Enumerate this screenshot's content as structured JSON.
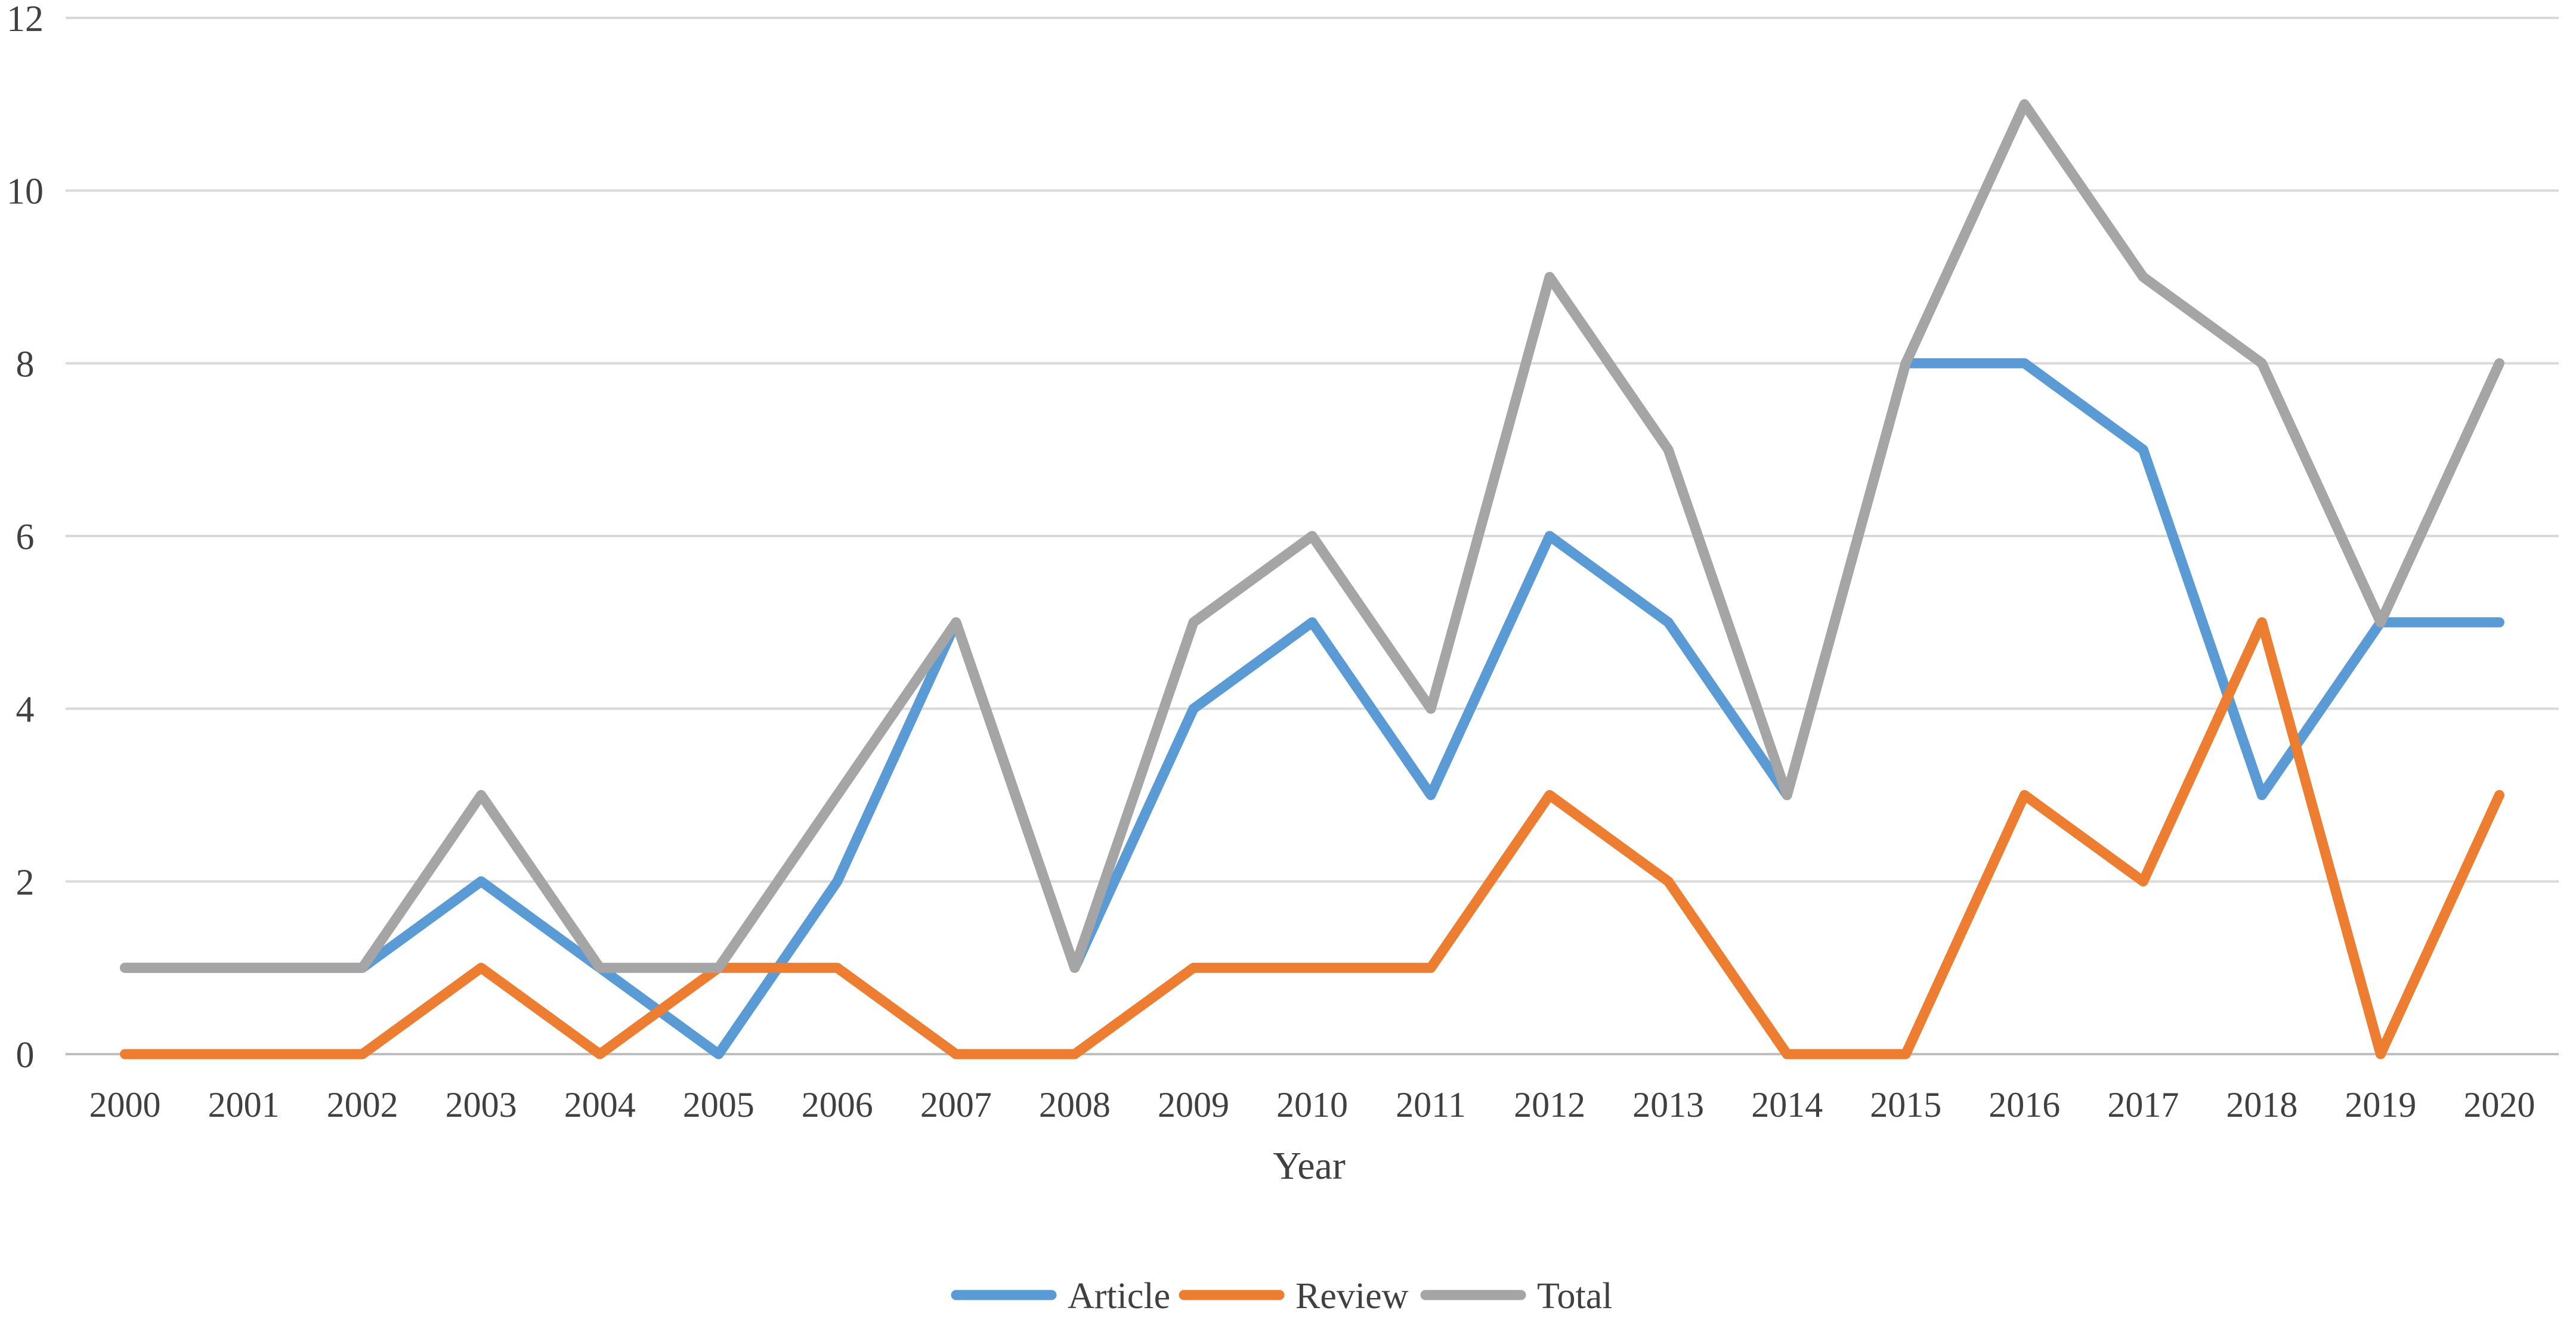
{
  "chart_data": {
    "type": "line",
    "title": "",
    "xlabel": "Year",
    "ylabel": "",
    "categories": [
      "2000",
      "2001",
      "2002",
      "2003",
      "2004",
      "2005",
      "2006",
      "2007",
      "2008",
      "2009",
      "2010",
      "2011",
      "2012",
      "2013",
      "2014",
      "2015",
      "2016",
      "2017",
      "2018",
      "2019",
      "2020"
    ],
    "ylim": [
      0,
      12
    ],
    "yticks": [
      "0",
      "2",
      "4",
      "6",
      "8",
      "10",
      "12"
    ],
    "grid": true,
    "legend_position": "bottom",
    "series": [
      {
        "name": "Article",
        "color": "#5b9bd5",
        "values": [
          1,
          1,
          1,
          2,
          1,
          0,
          2,
          5,
          1,
          4,
          5,
          3,
          6,
          5,
          3,
          8,
          8,
          7,
          3,
          5,
          5
        ]
      },
      {
        "name": "Review",
        "color": "#ed7d31",
        "values": [
          0,
          0,
          0,
          1,
          0,
          1,
          1,
          0,
          0,
          1,
          1,
          1,
          3,
          2,
          0,
          0,
          3,
          2,
          5,
          0,
          3
        ]
      },
      {
        "name": "Total",
        "color": "#a5a5a5",
        "values": [
          1,
          1,
          1,
          3,
          1,
          1,
          3,
          5,
          1,
          5,
          6,
          4,
          9,
          7,
          3,
          8,
          11,
          9,
          8,
          5,
          8
        ]
      }
    ]
  }
}
